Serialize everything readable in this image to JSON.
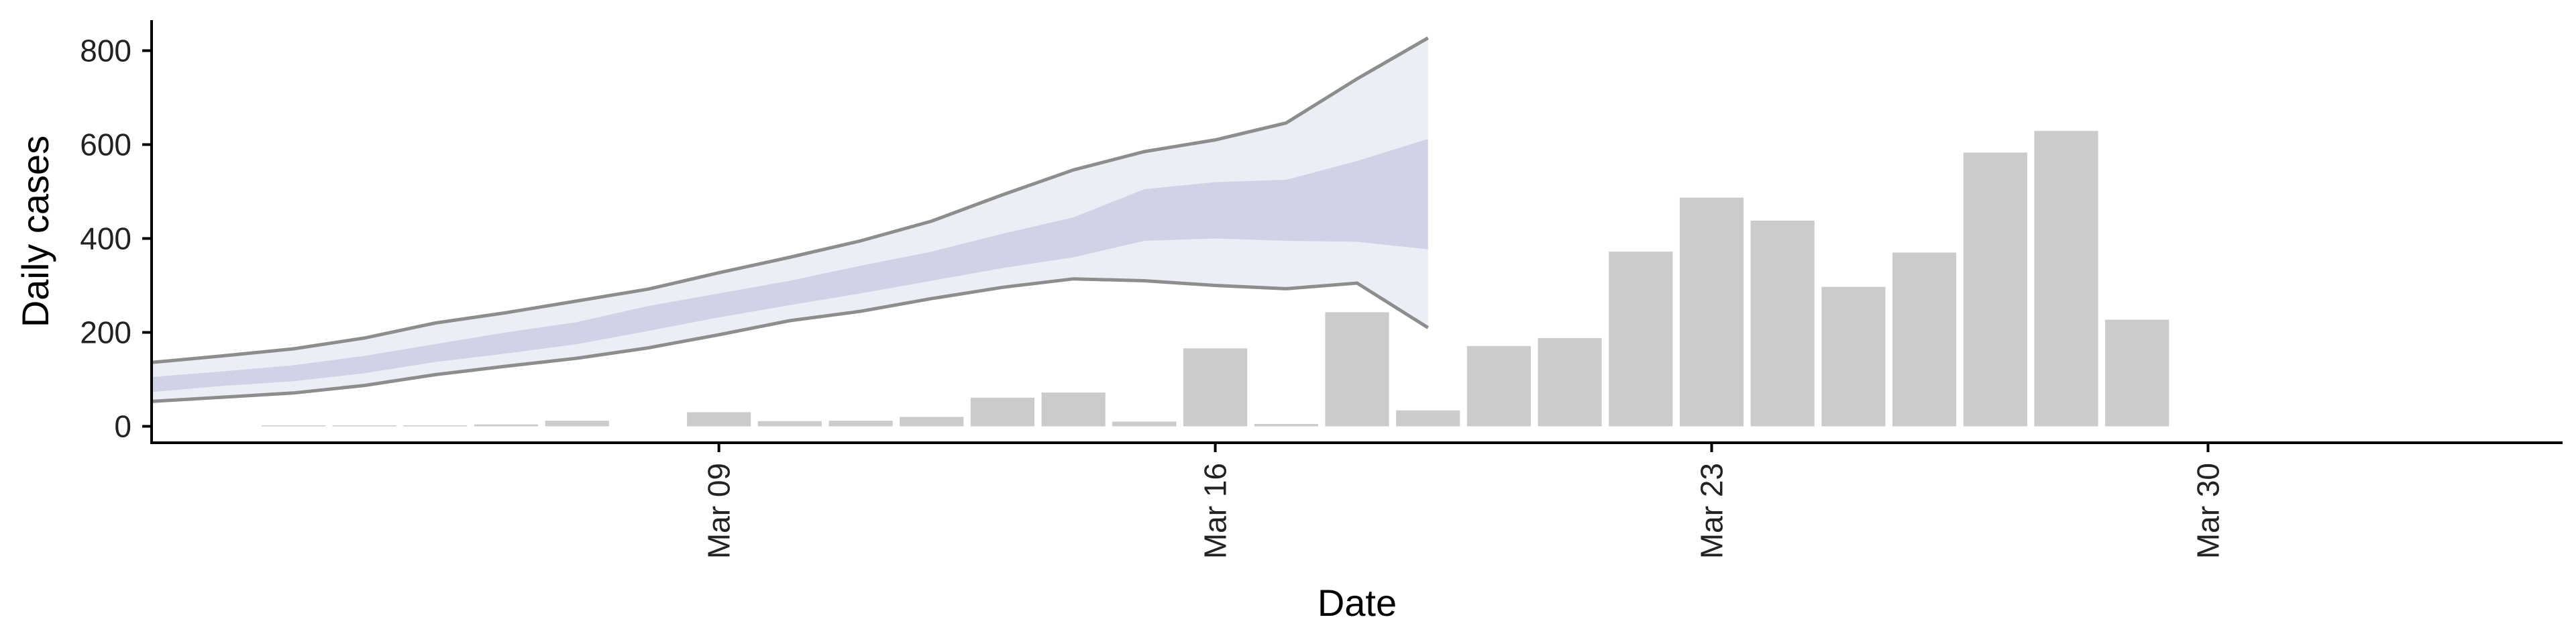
{
  "colors": {
    "bar": "#cbcbcb",
    "band_outer": "#eceef5",
    "band_inner": "#cfd3e5",
    "band_line": "#8d8d8d",
    "axis": "#000000"
  },
  "chart_data": {
    "type": "bar",
    "xlabel": "Date",
    "ylabel": "Daily cases",
    "ylim": [
      -35,
      865
    ],
    "yticks": [
      0,
      200,
      400,
      600,
      800
    ],
    "xlim": [
      "2020-03-01",
      "2020-04-04"
    ],
    "xticks": [
      {
        "date": "2020-03-09",
        "label": "Mar 09"
      },
      {
        "date": "2020-03-16",
        "label": "Mar 16"
      },
      {
        "date": "2020-03-23",
        "label": "Mar 23"
      },
      {
        "date": "2020-03-30",
        "label": "Mar 30"
      }
    ],
    "grid": false,
    "legend": "none",
    "bars": [
      {
        "date": "2020-03-03",
        "value": 1
      },
      {
        "date": "2020-03-04",
        "value": 0
      },
      {
        "date": "2020-03-05",
        "value": 0
      },
      {
        "date": "2020-03-06",
        "value": 4
      },
      {
        "date": "2020-03-07",
        "value": 12
      },
      {
        "date": "2020-03-09",
        "value": 30
      },
      {
        "date": "2020-03-10",
        "value": 11
      },
      {
        "date": "2020-03-11",
        "value": 12
      },
      {
        "date": "2020-03-12",
        "value": 20
      },
      {
        "date": "2020-03-13",
        "value": 61
      },
      {
        "date": "2020-03-14",
        "value": 72
      },
      {
        "date": "2020-03-15",
        "value": 10
      },
      {
        "date": "2020-03-16",
        "value": 166
      },
      {
        "date": "2020-03-17",
        "value": 5
      },
      {
        "date": "2020-03-18",
        "value": 243
      },
      {
        "date": "2020-03-19",
        "value": 34
      },
      {
        "date": "2020-03-20",
        "value": 171
      },
      {
        "date": "2020-03-21",
        "value": 188
      },
      {
        "date": "2020-03-22",
        "value": 372
      },
      {
        "date": "2020-03-23",
        "value": 487
      },
      {
        "date": "2020-03-24",
        "value": 438
      },
      {
        "date": "2020-03-25",
        "value": 297
      },
      {
        "date": "2020-03-26",
        "value": 370
      },
      {
        "date": "2020-03-27",
        "value": 583
      },
      {
        "date": "2020-03-28",
        "value": 629
      },
      {
        "date": "2020-03-29",
        "value": 227
      }
    ],
    "bands": [
      {
        "date": "2020-03-01",
        "lower90": 53,
        "lower50": 73,
        "upper50": 105,
        "upper90": 136
      },
      {
        "date": "2020-03-02",
        "lower90": 62,
        "lower50": 86,
        "upper50": 117,
        "upper90": 150
      },
      {
        "date": "2020-03-03",
        "lower90": 71,
        "lower50": 96,
        "upper50": 130,
        "upper90": 165
      },
      {
        "date": "2020-03-04",
        "lower90": 87,
        "lower50": 113,
        "upper50": 150,
        "upper90": 188
      },
      {
        "date": "2020-03-05",
        "lower90": 110,
        "lower50": 137,
        "upper50": 175,
        "upper90": 220
      },
      {
        "date": "2020-03-06",
        "lower90": 128,
        "lower50": 155,
        "upper50": 200,
        "upper90": 242
      },
      {
        "date": "2020-03-07",
        "lower90": 145,
        "lower50": 175,
        "upper50": 222,
        "upper90": 267
      },
      {
        "date": "2020-03-08",
        "lower90": 167,
        "lower50": 203,
        "upper50": 256,
        "upper90": 292
      },
      {
        "date": "2020-03-09",
        "lower90": 195,
        "lower50": 232,
        "upper50": 283,
        "upper90": 327
      },
      {
        "date": "2020-03-10",
        "lower90": 225,
        "lower50": 258,
        "upper50": 310,
        "upper90": 360
      },
      {
        "date": "2020-03-11",
        "lower90": 245,
        "lower50": 283,
        "upper50": 342,
        "upper90": 395
      },
      {
        "date": "2020-03-12",
        "lower90": 272,
        "lower50": 310,
        "upper50": 372,
        "upper90": 437
      },
      {
        "date": "2020-03-13",
        "lower90": 296,
        "lower50": 337,
        "upper50": 410,
        "upper90": 493
      },
      {
        "date": "2020-03-14",
        "lower90": 314,
        "lower50": 360,
        "upper50": 445,
        "upper90": 546
      },
      {
        "date": "2020-03-15",
        "lower90": 310,
        "lower50": 395,
        "upper50": 505,
        "upper90": 585
      },
      {
        "date": "2020-03-16",
        "lower90": 300,
        "lower50": 400,
        "upper50": 520,
        "upper90": 610
      },
      {
        "date": "2020-03-17",
        "lower90": 293,
        "lower50": 395,
        "upper50": 525,
        "upper90": 646
      },
      {
        "date": "2020-03-18",
        "lower90": 305,
        "lower50": 393,
        "upper50": 565,
        "upper90": 740
      },
      {
        "date": "2020-03-19",
        "lower90": 210,
        "lower50": 377,
        "upper50": 612,
        "upper90": 827
      }
    ]
  }
}
